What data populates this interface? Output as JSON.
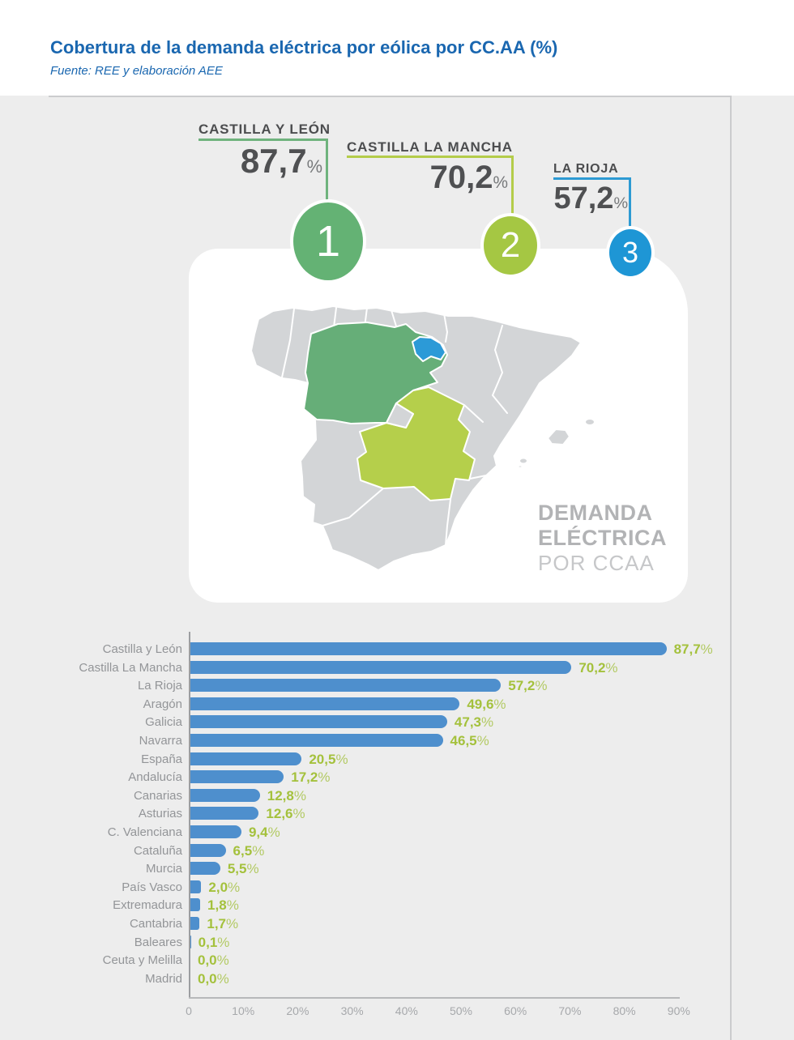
{
  "header": {
    "title": "Cobertura de la demanda eléctrica por eólica por CC.AA (%)",
    "source": "Fuente: REE y elaboración AEE"
  },
  "callouts": [
    {
      "rank": "1",
      "name": "CASTILLA Y LEÓN",
      "value": "87,7",
      "pct": "%"
    },
    {
      "rank": "2",
      "name": "CASTILLA LA MANCHA",
      "value": "70,2",
      "pct": "%"
    },
    {
      "rank": "3",
      "name": "LA RIOJA",
      "value": "57,2",
      "pct": "%"
    }
  ],
  "map": {
    "caption_line1": "DEMANDA",
    "caption_line2": "ELÉCTRICA",
    "caption_line3": "POR CCAA"
  },
  "chart_data": {
    "type": "bar",
    "orientation": "horizontal",
    "title": "Cobertura de la demanda eléctrica por eólica por CC.AA (%)",
    "categories": [
      "Castilla y León",
      "Castilla La Mancha",
      "La Rioja",
      "Aragón",
      "Galicia",
      "Navarra",
      "España",
      "Andalucía",
      "Canarias",
      "Asturias",
      "C. Valenciana",
      "Cataluña",
      "Murcia",
      "País Vasco",
      "Extremadura",
      "Cantabria",
      "Baleares",
      "Ceuta y Melilla",
      "Madrid"
    ],
    "values": [
      87.7,
      70.2,
      57.2,
      49.6,
      47.3,
      46.5,
      20.5,
      17.2,
      12.8,
      12.6,
      9.4,
      6.5,
      5.5,
      2.0,
      1.8,
      1.7,
      0.1,
      0.0,
      0.0
    ],
    "value_labels": [
      "87,7%",
      "70,2%",
      "57,2%",
      "49,6%",
      "47,3%",
      "46,5%",
      "20,5%",
      "17,2%",
      "12,8%",
      "12,6%",
      "9,4%",
      "6,5%",
      "5,5%",
      "2,0%",
      "1,8%",
      "1,7%",
      "0,1%",
      "0,0%",
      "0,0%"
    ],
    "x_ticks": [
      "0",
      "10%",
      "20%",
      "30%",
      "40%",
      "50%",
      "60%",
      "70%",
      "80%",
      "90%"
    ],
    "xlim": [
      0,
      100
    ],
    "grid": false,
    "legend": "none"
  },
  "colors": {
    "title_blue": "#1a67b0",
    "bar_blue": "#4e8fcd",
    "value_green": "#a4c13c",
    "rank1_green": "#64b274",
    "rank2_lime": "#a5c743",
    "rank3_blue": "#1e96d5",
    "region_green": "#66ae78",
    "region_lime": "#b5cf4b",
    "region_blue": "#2c9ad7",
    "map_gray": "#d3d5d7",
    "canvas_gray": "#ededed"
  }
}
